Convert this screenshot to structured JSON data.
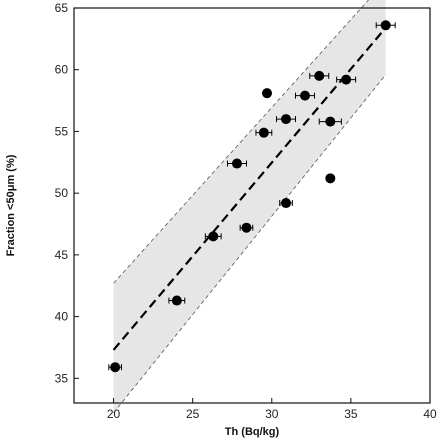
{
  "chart_data": {
    "type": "scatter",
    "title": "",
    "xlabel": "Th (Bq/kg)",
    "ylabel": "Fraction <50μm (%)",
    "xlim": [
      17.5,
      40
    ],
    "ylim": [
      33,
      65
    ],
    "xticks": [
      20,
      25,
      30,
      35,
      40
    ],
    "yticks": [
      35,
      40,
      45,
      50,
      55,
      60,
      65
    ],
    "grid": false,
    "points": [
      {
        "x": 20.1,
        "y": 35.9,
        "xerr": 0.4
      },
      {
        "x": 24.0,
        "y": 41.3,
        "xerr": 0.5
      },
      {
        "x": 26.3,
        "y": 46.5,
        "xerr": 0.5
      },
      {
        "x": 27.8,
        "y": 52.4,
        "xerr": 0.6
      },
      {
        "x": 28.4,
        "y": 47.2,
        "xerr": 0.4
      },
      {
        "x": 29.5,
        "y": 54.9,
        "xerr": 0.5
      },
      {
        "x": 29.7,
        "y": 58.1,
        "xerr": 0.0
      },
      {
        "x": 30.9,
        "y": 56.0,
        "xerr": 0.6
      },
      {
        "x": 30.9,
        "y": 49.2,
        "xerr": 0.4
      },
      {
        "x": 32.1,
        "y": 57.9,
        "xerr": 0.6
      },
      {
        "x": 33.0,
        "y": 59.5,
        "xerr": 0.6
      },
      {
        "x": 33.7,
        "y": 55.8,
        "xerr": 0.7
      },
      {
        "x": 33.7,
        "y": 51.2,
        "xerr": 0.0
      },
      {
        "x": 34.7,
        "y": 59.2,
        "xerr": 0.6
      },
      {
        "x": 37.2,
        "y": 63.6,
        "xerr": 0.6
      }
    ],
    "fit": {
      "x": [
        20,
        37.2
      ],
      "y": [
        37.3,
        63.4
      ],
      "style": "dashed"
    },
    "confidence_band": {
      "x": [
        20,
        37.2
      ],
      "upper": [
        42.7,
        67.2
      ],
      "lower": [
        32.2,
        59.6
      ]
    },
    "colors": {
      "points": "#000000",
      "band": "#e6e6e6",
      "band_edge": "#555555",
      "fit": "#000000"
    }
  }
}
